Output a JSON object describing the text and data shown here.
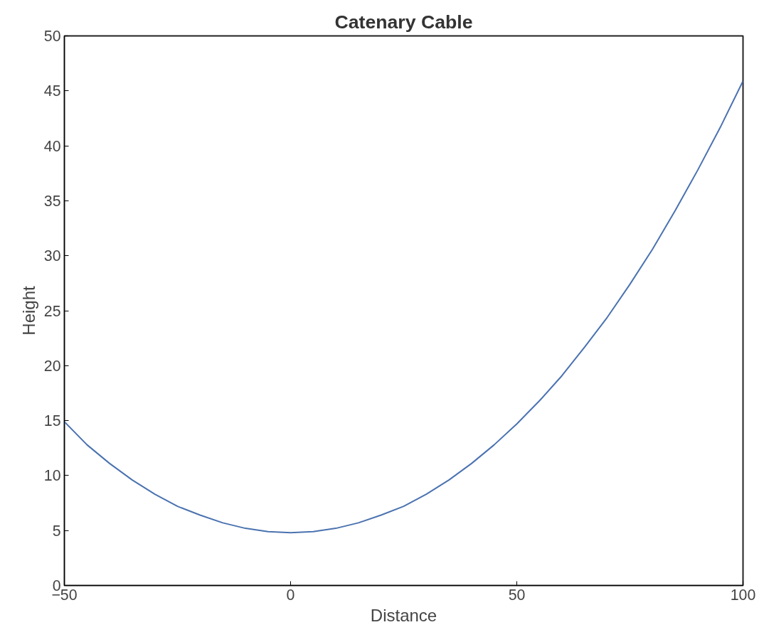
{
  "chart_data": {
    "type": "line",
    "title": "Catenary Cable",
    "xlabel": "Distance",
    "ylabel": "Height",
    "x": [
      -50,
      -45,
      -40,
      -35,
      -30,
      -25,
      -20,
      -15,
      -10,
      -5,
      0,
      5,
      10,
      15,
      20,
      25,
      30,
      35,
      40,
      45,
      50,
      55,
      60,
      65,
      70,
      75,
      80,
      85,
      90,
      95,
      100
    ],
    "series": [
      {
        "color": "#4a72b0",
        "values": [
          14.9,
          12.8,
          11.1,
          9.6,
          8.3,
          7.2,
          6.4,
          5.7,
          5.2,
          4.9,
          4.8,
          4.9,
          5.2,
          5.7,
          6.4,
          7.2,
          8.3,
          9.6,
          11.1,
          12.8,
          14.7,
          16.8,
          19.1,
          21.7,
          24.4,
          27.4,
          30.6,
          34.1,
          37.8,
          41.7,
          45.9
        ]
      }
    ],
    "xlim": [
      -50,
      100
    ],
    "ylim": [
      0,
      50
    ],
    "xticks": [
      -50,
      0,
      50,
      100
    ],
    "yticks": [
      0,
      5,
      10,
      15,
      20,
      25,
      30,
      35,
      40,
      45,
      50
    ],
    "grid": false,
    "marker": "none",
    "line_style": "solid"
  }
}
